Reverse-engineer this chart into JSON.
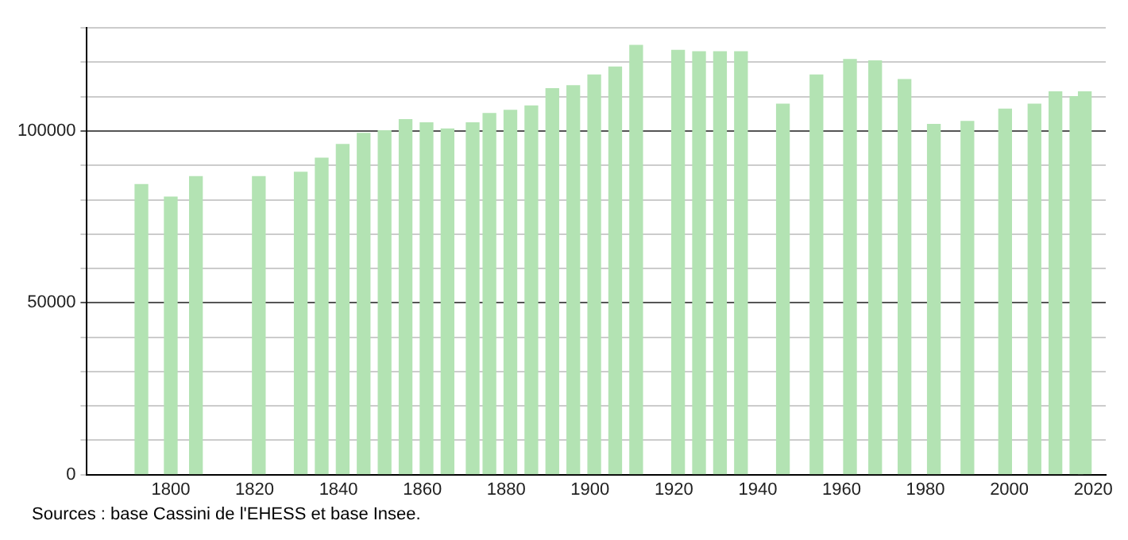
{
  "chart_data": {
    "type": "bar",
    "x": [
      1793,
      1800,
      1806,
      1821,
      1831,
      1836,
      1841,
      1846,
      1851,
      1856,
      1861,
      1866,
      1872,
      1876,
      1881,
      1886,
      1891,
      1896,
      1901,
      1906,
      1911,
      1921,
      1926,
      1931,
      1936,
      1946,
      1954,
      1962,
      1968,
      1975,
      1982,
      1990,
      1999,
      2006,
      2011,
      2016,
      2018
    ],
    "values": [
      84400,
      80800,
      86700,
      86700,
      88000,
      92100,
      96100,
      99300,
      100100,
      103300,
      102400,
      100600,
      102400,
      105100,
      106000,
      107300,
      112300,
      113200,
      116300,
      118600,
      124900,
      123500,
      123100,
      123100,
      123100,
      107800,
      116300,
      120800,
      120400,
      115000,
      101900,
      102800,
      106400,
      107800,
      111400,
      110000,
      111400
    ],
    "color": "#b3e3b3",
    "xlim": [
      1780,
      2023
    ],
    "xticks": [
      1800,
      1820,
      1840,
      1860,
      1880,
      1900,
      1920,
      1940,
      1960,
      1980,
      2000,
      2020
    ],
    "ylim": [
      0,
      130000
    ],
    "yticks": [
      0,
      {
        "value": 10000,
        "label": null
      },
      {
        "value": 20000,
        "label": null
      },
      {
        "value": 30000,
        "label": null
      },
      {
        "value": 40000,
        "label": null
      },
      50000,
      {
        "value": 60000,
        "label": null
      },
      {
        "value": 70000,
        "label": null
      },
      {
        "value": 80000,
        "label": null
      },
      {
        "value": 90000,
        "label": null
      },
      100000,
      {
        "value": 110000,
        "label": null
      },
      {
        "value": 120000,
        "label": null
      },
      {
        "value": 130000,
        "label": null
      }
    ],
    "grid": "y",
    "legend": false,
    "annotations": [
      "Sources : base Cassini de l'EHESS et base Insee."
    ]
  }
}
